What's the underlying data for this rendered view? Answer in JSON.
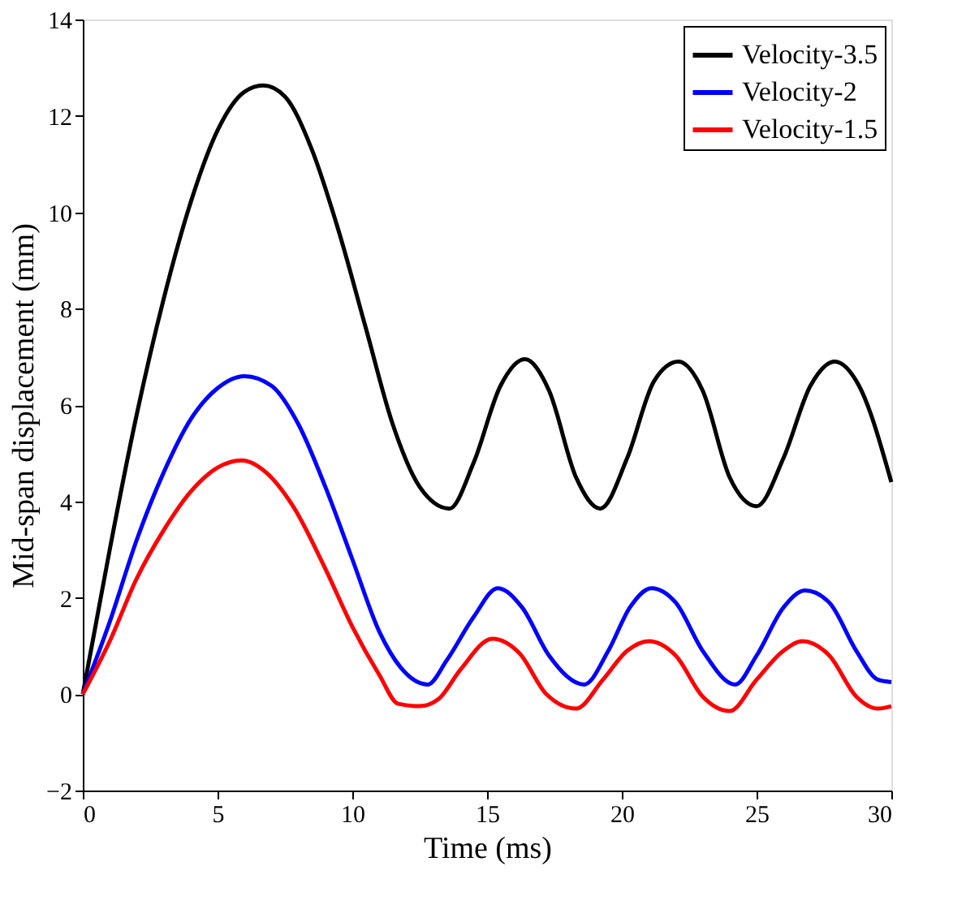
{
  "chart_data": {
    "type": "line",
    "xlabel": "Time (ms)",
    "ylabel": "Mid-span displacement (mm)",
    "xlim": [
      0,
      30
    ],
    "xticks": [
      0,
      5,
      10,
      15,
      20,
      25,
      30
    ],
    "ylim": [
      -2,
      14
    ],
    "yticks": [
      -2,
      0,
      2,
      4,
      6,
      8,
      10,
      12,
      14
    ],
    "grid": false,
    "legend": "top right",
    "line_style": "solid",
    "marker": "none",
    "series": [
      {
        "name": "Velocity-3.5",
        "color": "#000000",
        "x": [
          0,
          0.5,
          1,
          2,
          3,
          4,
          5,
          6,
          6.7,
          7.5,
          8.5,
          9.5,
          10.5,
          11.5,
          12.5,
          13.6,
          14.5,
          15.5,
          16.4,
          17.3,
          18.3,
          19.2,
          20.2,
          21.2,
          22.1,
          23,
          24,
          25,
          26,
          27,
          27.9,
          28.8,
          30
        ],
        "values": [
          0,
          1.5,
          3,
          5.8,
          8.2,
          10.2,
          11.7,
          12.5,
          12.63,
          12.4,
          11.3,
          9.6,
          7.6,
          5.6,
          4.3,
          3.85,
          4.8,
          6.4,
          6.95,
          6.3,
          4.5,
          3.85,
          4.9,
          6.5,
          6.9,
          6.3,
          4.5,
          3.9,
          4.9,
          6.4,
          6.9,
          6.4,
          4.4
        ]
      },
      {
        "name": "Velocity-2",
        "color": "#0000ff",
        "x": [
          0,
          1,
          2,
          3,
          4,
          5,
          6,
          7,
          8,
          9,
          10,
          11,
          11.8,
          12.8,
          13.5,
          14.5,
          15.4,
          16.3,
          17.3,
          18.6,
          19.5,
          20.3,
          21.1,
          22,
          23,
          24.2,
          25,
          26,
          26.8,
          27.7,
          28.7,
          29.5,
          30
        ],
        "values": [
          0,
          1.5,
          3.2,
          4.6,
          5.7,
          6.35,
          6.6,
          6.4,
          5.6,
          4.3,
          2.8,
          1.3,
          0.55,
          0.2,
          0.7,
          1.6,
          2.2,
          1.8,
          0.8,
          0.2,
          0.9,
          1.8,
          2.2,
          1.9,
          0.9,
          0.2,
          0.8,
          1.8,
          2.15,
          1.9,
          0.9,
          0.3,
          0.25
        ]
      },
      {
        "name": "Velocity-1.5",
        "color": "#ff0000",
        "x": [
          0,
          1,
          2,
          3,
          4,
          5,
          5.9,
          6.8,
          7.8,
          9,
          10,
          11,
          11.7,
          12.5,
          13.2,
          14,
          15.2,
          16.2,
          17.2,
          18.3,
          19.3,
          20.2,
          21,
          22,
          23,
          24,
          25,
          26,
          26.7,
          27.7,
          28.7,
          29.5,
          30
        ],
        "values": [
          0,
          1.1,
          2.4,
          3.4,
          4.2,
          4.7,
          4.85,
          4.6,
          3.9,
          2.6,
          1.4,
          0.4,
          -0.2,
          -0.25,
          -0.1,
          0.5,
          1.15,
          0.85,
          0,
          -0.3,
          0.3,
          0.9,
          1.1,
          0.8,
          -0.05,
          -0.35,
          0.3,
          0.9,
          1.1,
          0.8,
          -0.05,
          -0.3,
          -0.25
        ]
      }
    ]
  }
}
